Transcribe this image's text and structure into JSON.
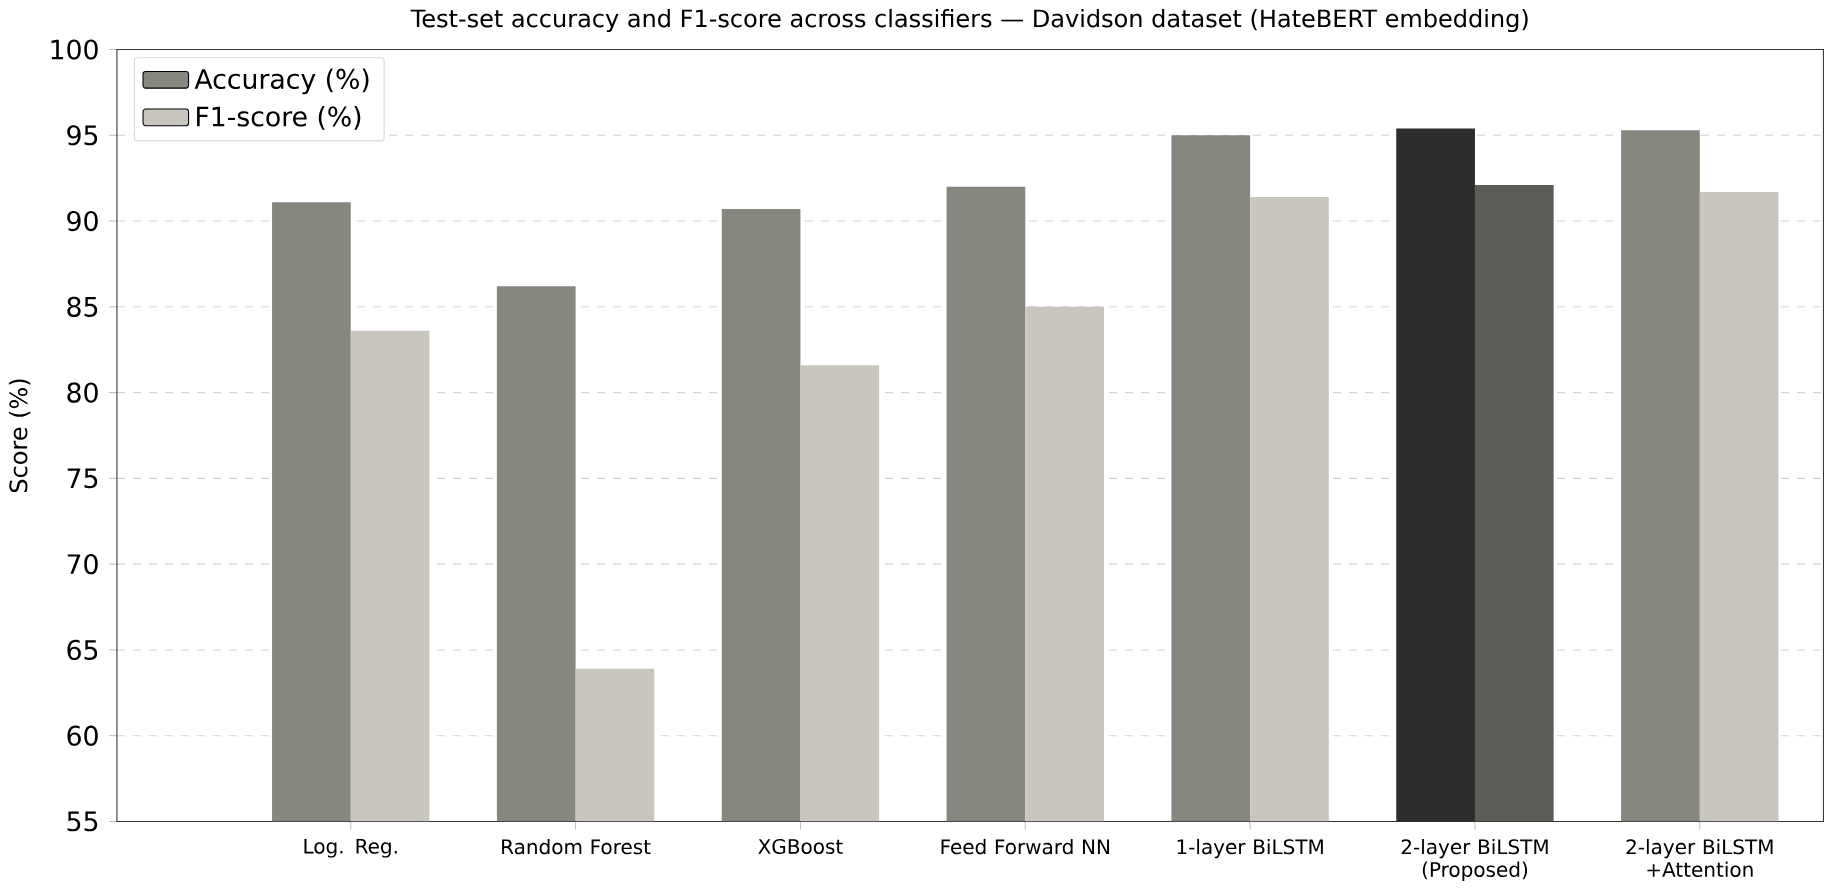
{
  "chart_data": {
    "type": "bar",
    "title": "Test-set accuracy and F1-score across classifiers — Davidson dataset (HateBERT embedding)",
    "ylabel": "Score (%)",
    "categories": [
      "Log. Reg.",
      "Random Forest",
      "XGBoost",
      "Feed Forward NN",
      "1-layer BiLSTM",
      "2-layer BiLSTM (Proposed)",
      "2-layer BiLSTM +Attention"
    ],
    "series": [
      {
        "name": "Accuracy (%)",
        "color": "#878780",
        "colors": [
          "#878780",
          "#878780",
          "#878780",
          "#878780",
          "#878780",
          "#2c2c2a",
          "#878780"
        ],
        "values": [
          91.1,
          86.2,
          90.7,
          92.0,
          95.0,
          95.4,
          95.3
        ]
      },
      {
        "name": "F1-score (%)",
        "color": "#c8c6be",
        "colors": [
          "#c8c6be",
          "#c8c6be",
          "#c8c6be",
          "#c8c6be",
          "#c8c6be",
          "#5c5c56",
          "#c8c6be"
        ],
        "values": [
          83.6,
          63.9,
          81.6,
          85.0,
          91.4,
          92.1,
          91.7
        ]
      }
    ],
    "ylim": [
      55,
      100
    ],
    "yticks": [
      55,
      60,
      65,
      70,
      75,
      80,
      85,
      90,
      95,
      100
    ],
    "grid": "y",
    "legend": "top left"
  }
}
